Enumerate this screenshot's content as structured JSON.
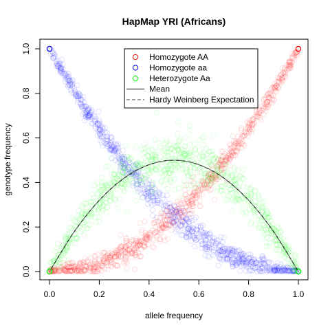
{
  "chart_data": {
    "type": "scatter",
    "title": "HapMap YRI (Africans)",
    "xlabel": "allele frequency",
    "ylabel": "genotype frequency",
    "xlim": [
      0,
      1
    ],
    "ylim": [
      0,
      1
    ],
    "x_ticks": [
      "0.0",
      "0.2",
      "0.4",
      "0.6",
      "0.8",
      "1.0"
    ],
    "y_ticks": [
      "0.0",
      "0.2",
      "0.4",
      "0.6",
      "0.8",
      "1.0"
    ],
    "grid": false,
    "legend_position": "top-right",
    "legend": [
      {
        "label": "Homozygote AA",
        "type": "point",
        "color": "#FF0000"
      },
      {
        "label": "Homozygote aa",
        "type": "point",
        "color": "#0000FF"
      },
      {
        "label": "Heterozygote Aa",
        "type": "point",
        "color": "#00FF00"
      },
      {
        "label": "Mean",
        "type": "line",
        "color": "#000000"
      },
      {
        "label": "Hardy Weinberg Expectation",
        "type": "dashed",
        "color": "#808080"
      }
    ],
    "series": [
      {
        "name": "Homozygote AA",
        "color": "#FF0000",
        "model": "p^2",
        "scatter_sd": 0.02,
        "x": [
          0.0,
          0.1,
          0.2,
          0.3,
          0.4,
          0.5,
          0.6,
          0.7,
          0.8,
          0.9,
          1.0
        ],
        "y": [
          0.0,
          0.01,
          0.04,
          0.09,
          0.16,
          0.25,
          0.36,
          0.49,
          0.64,
          0.81,
          1.0
        ]
      },
      {
        "name": "Homozygote aa",
        "color": "#0000FF",
        "model": "(1-p)^2",
        "scatter_sd": 0.02,
        "x": [
          0.0,
          0.1,
          0.2,
          0.3,
          0.4,
          0.5,
          0.6,
          0.7,
          0.8,
          0.9,
          1.0
        ],
        "y": [
          1.0,
          0.81,
          0.64,
          0.49,
          0.36,
          0.25,
          0.16,
          0.09,
          0.04,
          0.01,
          0.0
        ]
      },
      {
        "name": "Heterozygote Aa",
        "color": "#00FF00",
        "model": "2p(1-p)",
        "scatter_sd": 0.05,
        "x": [
          0.0,
          0.1,
          0.2,
          0.3,
          0.4,
          0.5,
          0.6,
          0.7,
          0.8,
          0.9,
          1.0
        ],
        "y": [
          0.0,
          0.18,
          0.32,
          0.42,
          0.48,
          0.5,
          0.48,
          0.42,
          0.32,
          0.18,
          0.0
        ]
      },
      {
        "name": "Mean",
        "color": "#000000",
        "x": [
          0.0,
          0.1,
          0.2,
          0.3,
          0.4,
          0.5,
          0.6,
          0.7,
          0.8,
          0.9,
          1.0
        ],
        "y": [
          0.0,
          0.18,
          0.32,
          0.42,
          0.48,
          0.5,
          0.48,
          0.42,
          0.32,
          0.18,
          0.0
        ]
      },
      {
        "name": "Hardy Weinberg Expectation",
        "color": "#808080",
        "x": [
          0.0,
          0.1,
          0.2,
          0.3,
          0.4,
          0.5,
          0.6,
          0.7,
          0.8,
          0.9,
          1.0
        ],
        "y": [
          0.0,
          0.18,
          0.32,
          0.42,
          0.48,
          0.5,
          0.48,
          0.42,
          0.32,
          0.18,
          0.0
        ]
      }
    ]
  }
}
